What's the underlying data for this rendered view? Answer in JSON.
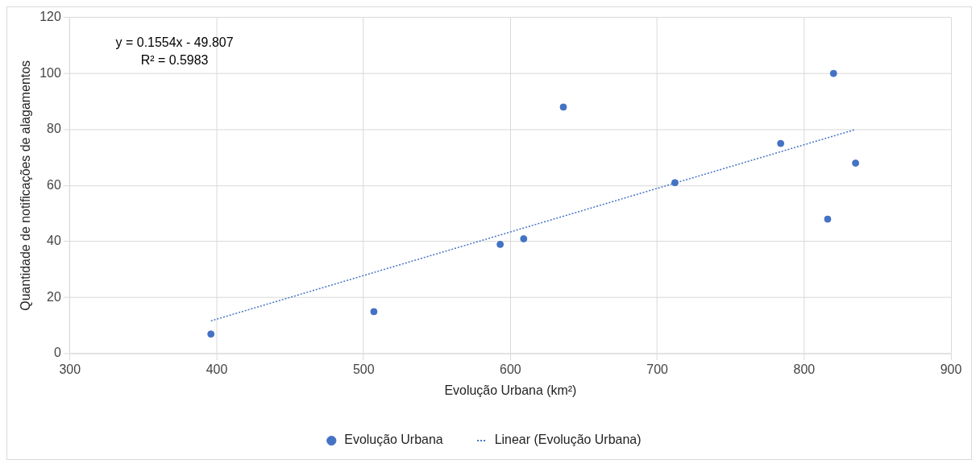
{
  "chart_data": {
    "type": "scatter",
    "xlabel": "Evolução Urbana (km²)",
    "ylabel": "Quantidade de notificações de alagamentos",
    "annotations": [
      "y = 0.1554x - 49.807",
      "R² = 0.5983"
    ],
    "series": [
      {
        "name": "Evolução Urbana",
        "marker": "circle",
        "color": "#4472c4",
        "x": [
          396,
          507,
          593,
          609,
          636,
          712,
          784,
          820,
          816,
          835
        ],
        "values": [
          7,
          15,
          39,
          41,
          88,
          61,
          75,
          100,
          48,
          68
        ]
      },
      {
        "name": "Linear (Evolução Urbana)",
        "type": "line",
        "line_style": "dotted",
        "color": "#4472c4",
        "x": [
          396,
          835
        ],
        "values": [
          11.7,
          80.0
        ]
      }
    ],
    "xlim": [
      300,
      900
    ],
    "xticks": [
      300,
      400,
      500,
      600,
      700,
      800,
      900
    ],
    "ylim": [
      0,
      120
    ],
    "yticks": [
      0,
      20,
      40,
      60,
      80,
      100,
      120
    ],
    "grid": true,
    "legend": "bottom"
  }
}
